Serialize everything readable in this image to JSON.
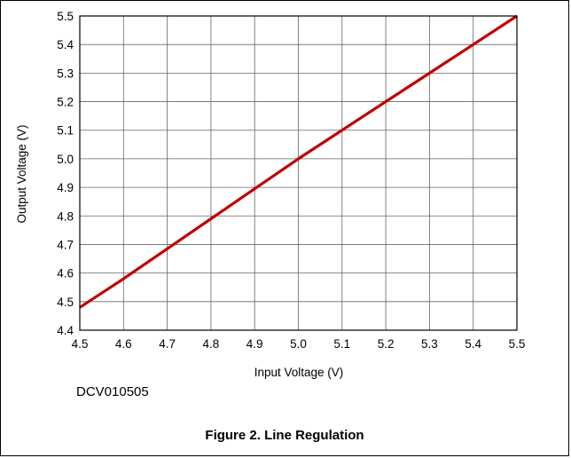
{
  "chart_data": {
    "type": "line",
    "xlabel": "Input Voltage (V)",
    "ylabel": "Output Voltage (V)",
    "xlim": [
      4.5,
      5.5
    ],
    "ylim": [
      4.4,
      5.5
    ],
    "x_ticks": [
      "4.5",
      "4.6",
      "4.7",
      "4.8",
      "4.9",
      "5.0",
      "5.1",
      "5.2",
      "5.3",
      "5.4",
      "5.5"
    ],
    "y_ticks": [
      "5.5",
      "5.4",
      "5.3",
      "5.2",
      "5.1",
      "5.0",
      "4.9",
      "4.8",
      "4.7",
      "4.6",
      "4.5",
      "4.4"
    ],
    "grid": true,
    "series": [
      {
        "color": "#c00000",
        "x": [
          4.5,
          4.6,
          4.7,
          4.8,
          4.9,
          5.0,
          5.1,
          5.2,
          5.3,
          5.4,
          5.5
        ],
        "y": [
          4.48,
          4.58,
          4.685,
          4.79,
          4.895,
          5.0,
          5.1,
          5.2,
          5.3,
          5.4,
          5.5
        ]
      }
    ]
  },
  "figure_code": "DCV010505",
  "caption": "Figure 2. Line Regulation"
}
